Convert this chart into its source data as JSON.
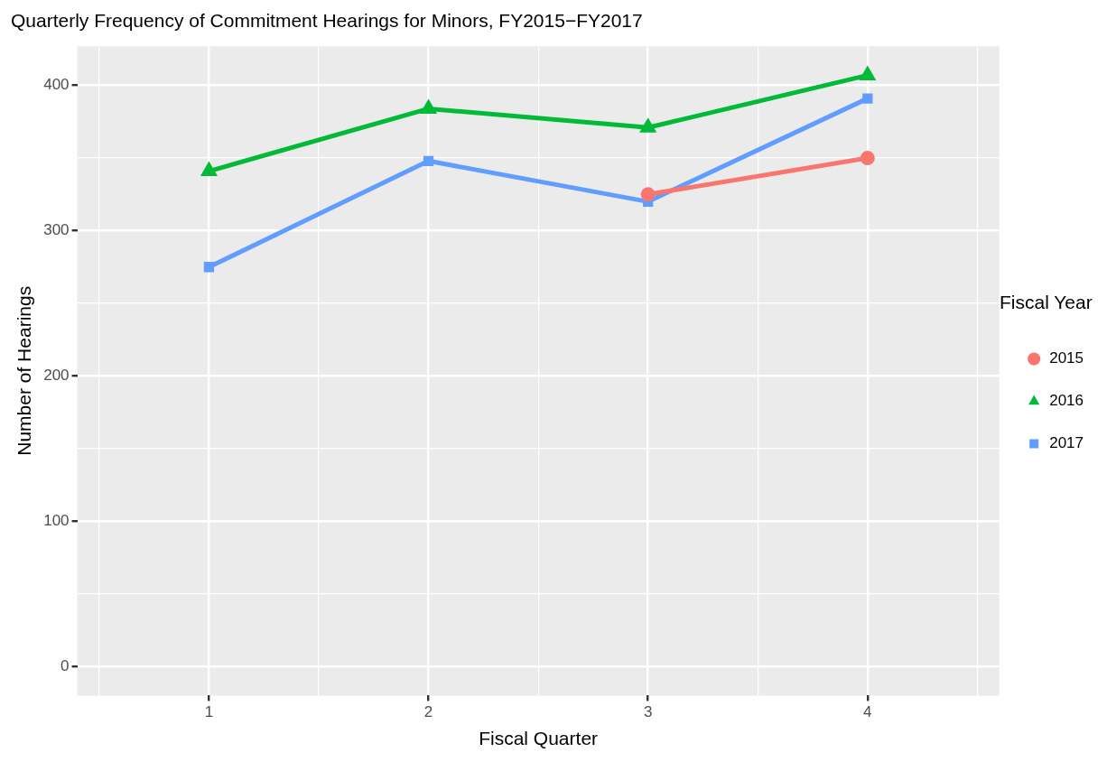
{
  "chart_data": {
    "type": "line",
    "title": "Quarterly Frequency of Commitment Hearings for Minors, FY2015−FY2017",
    "xlabel": "Fiscal Quarter",
    "ylabel": "Number of Hearings",
    "legend_title": "Fiscal Year",
    "x": [
      1,
      2,
      3,
      4
    ],
    "series": [
      {
        "name": "2015",
        "color": "#f8766d",
        "marker": "circle",
        "values": [
          null,
          null,
          325,
          350
        ]
      },
      {
        "name": "2016",
        "color": "#00ba38",
        "marker": "triangle",
        "values": [
          341,
          384,
          371,
          407
        ]
      },
      {
        "name": "2017",
        "color": "#619cff",
        "marker": "square",
        "values": [
          275,
          348,
          320,
          391
        ]
      }
    ],
    "xlim": [
      0.4,
      4.6
    ],
    "xticks": [
      {
        "value": 0.5,
        "label": null
      },
      1,
      {
        "value": 1.5,
        "label": null
      },
      2,
      {
        "value": 2.5,
        "label": null
      },
      3,
      {
        "value": 3.5,
        "label": null
      },
      4,
      {
        "value": 4.5,
        "label": null
      }
    ],
    "ylim": [
      -20,
      427
    ],
    "yticks": [
      0,
      {
        "value": 50,
        "label": null
      },
      100,
      {
        "value": 150,
        "label": null
      },
      200,
      {
        "value": 250,
        "label": null
      },
      300,
      {
        "value": 350,
        "label": null
      },
      400
    ],
    "grid": true,
    "legend": "right",
    "line_style": "solid"
  }
}
